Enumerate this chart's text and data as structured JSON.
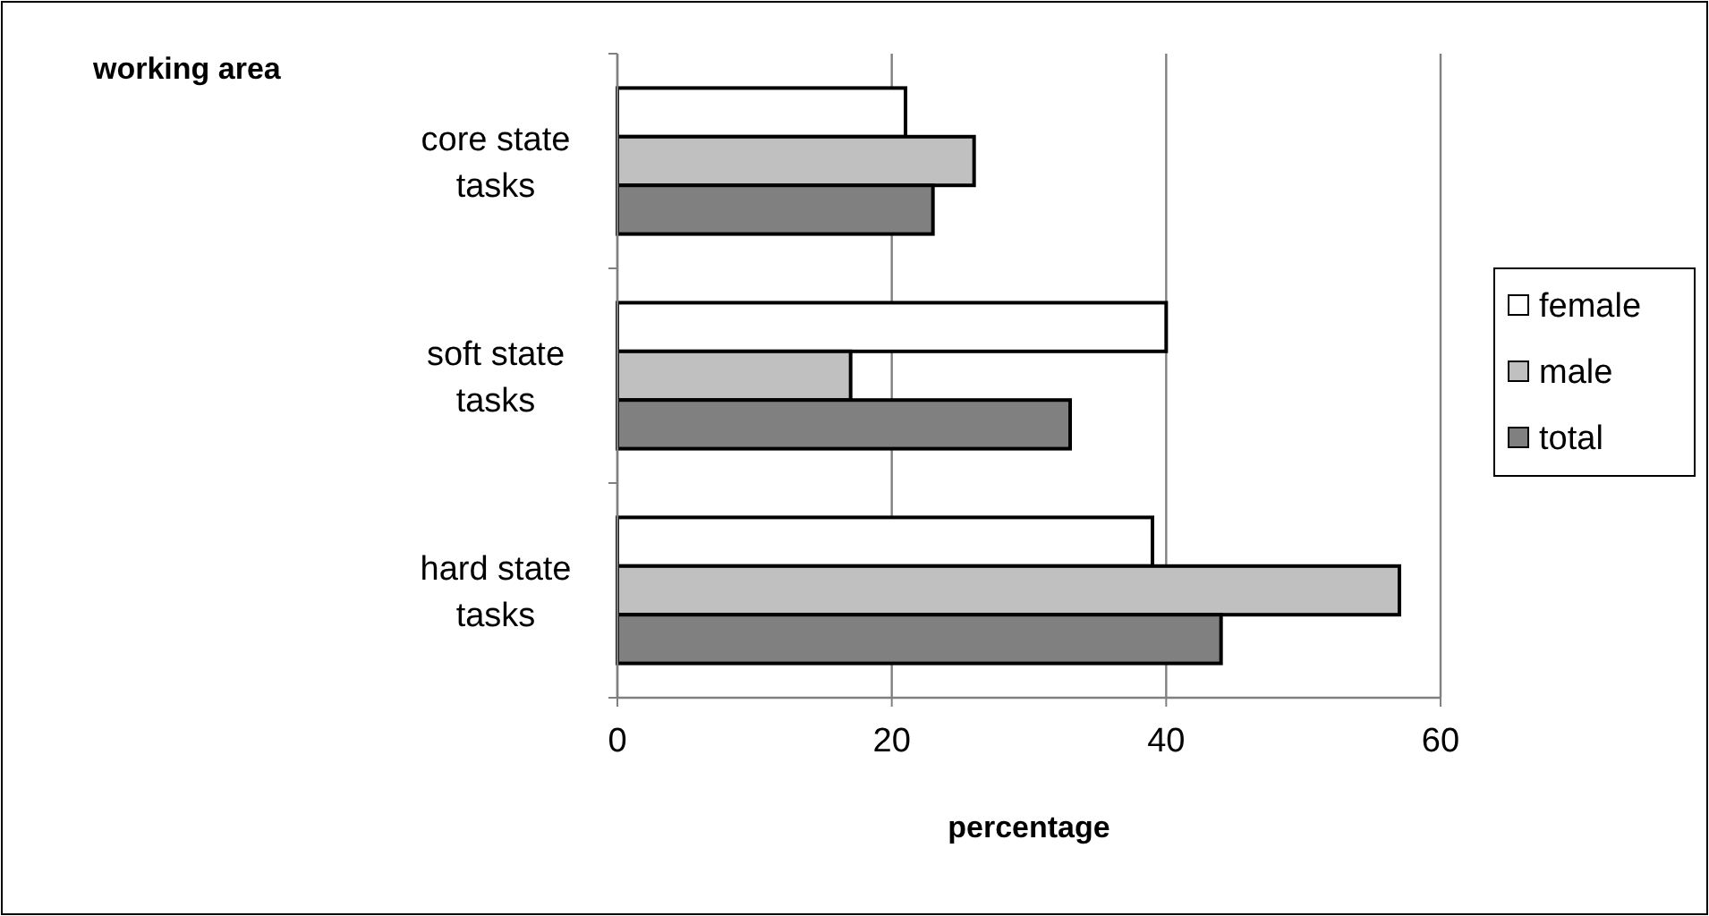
{
  "chart_data": {
    "type": "bar",
    "orientation": "horizontal",
    "ylabel": "working area",
    "xlabel": "percentage",
    "categories": [
      "core state tasks",
      "soft state tasks",
      "hard state tasks"
    ],
    "series": [
      {
        "name": "female",
        "color": "#ffffff",
        "values": [
          21,
          40,
          39
        ]
      },
      {
        "name": "male",
        "color": "#c0c0c0",
        "values": [
          26,
          17,
          57
        ]
      },
      {
        "name": "total",
        "color": "#808080",
        "values": [
          23,
          33,
          44
        ]
      }
    ],
    "xlim": [
      0,
      60
    ],
    "xticks": [
      0,
      20,
      40,
      60
    ],
    "grid": "x",
    "legend": "right"
  }
}
